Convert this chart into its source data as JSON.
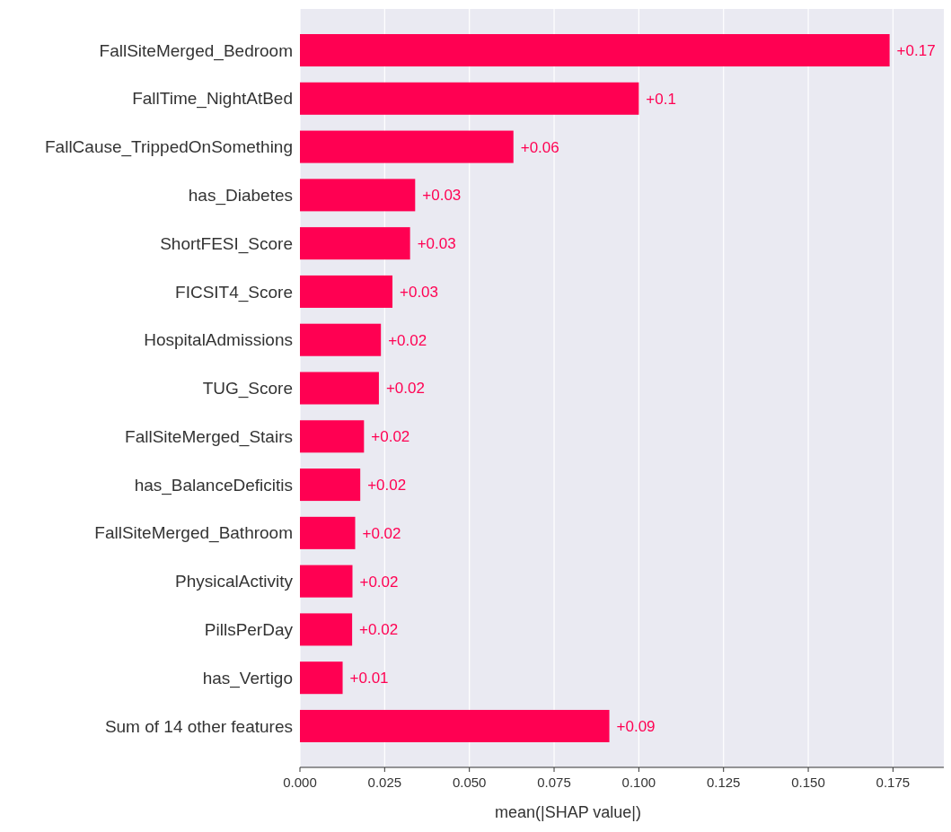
{
  "chart_data": {
    "type": "bar",
    "orientation": "horizontal",
    "xlabel": "mean(|SHAP value|)",
    "categories": [
      "FallSiteMerged_Bedroom",
      "FallTime_NightAtBed",
      "FallCause_TrippedOnSomething",
      "has_Diabetes",
      "ShortFESI_Score",
      "FICSIT4_Score",
      "HospitalAdmissions",
      "TUG_Score",
      "FallSiteMerged_Stairs",
      "has_BalanceDeficitis",
      "FallSiteMerged_Bathroom",
      "PhysicalActivity",
      "PillsPerDay",
      "has_Vertigo",
      "Sum of 14 other features"
    ],
    "values": [
      0.174,
      0.1,
      0.063,
      0.034,
      0.0325,
      0.0273,
      0.0239,
      0.0233,
      0.0189,
      0.0178,
      0.0163,
      0.0155,
      0.0154,
      0.0126,
      0.0913
    ],
    "value_labels": [
      "+0.17",
      "+0.1",
      "+0.06",
      "+0.03",
      "+0.03",
      "+0.03",
      "+0.02",
      "+0.02",
      "+0.02",
      "+0.02",
      "+0.02",
      "+0.02",
      "+0.02",
      "+0.01",
      "+0.09"
    ],
    "color": "#ff0052",
    "xlim": [
      0,
      0.19
    ],
    "xticks": [
      {
        "value": 0,
        "label": "0.000"
      },
      {
        "value": 0.025,
        "label": "0.025"
      },
      {
        "value": 0.05,
        "label": "0.050"
      },
      {
        "value": 0.075,
        "label": "0.075"
      },
      {
        "value": 0.1,
        "label": "0.100"
      },
      {
        "value": 0.125,
        "label": "0.125"
      },
      {
        "value": 0.15,
        "label": "0.150"
      },
      {
        "value": 0.175,
        "label": "0.175"
      }
    ],
    "grid": "x"
  }
}
